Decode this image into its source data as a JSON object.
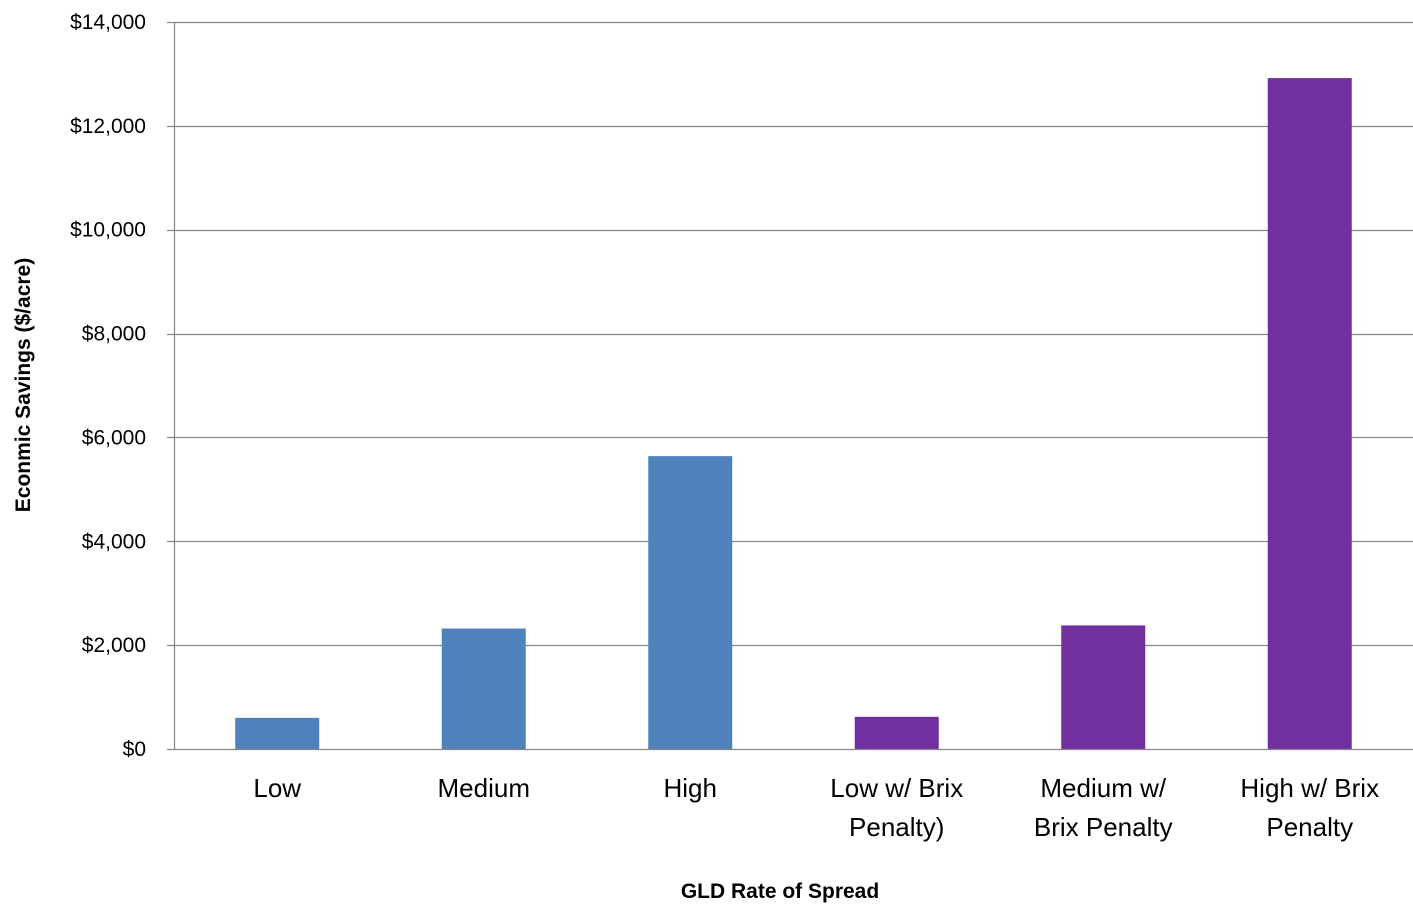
{
  "chart_data": {
    "type": "bar",
    "categories": [
      [
        "Low"
      ],
      [
        "Medium"
      ],
      [
        "High"
      ],
      [
        "Low w/ Brix",
        "Penalty)"
      ],
      [
        "Medium w/",
        "Brix Penalty"
      ],
      [
        "High w/ Brix",
        "Penalty"
      ]
    ],
    "values": [
      600,
      2320,
      5640,
      620,
      2380,
      12920
    ],
    "bar_colors": [
      "#4f81bd",
      "#4f81bd",
      "#4f81bd",
      "#7030a0",
      "#7030a0",
      "#7030a0"
    ],
    "xlabel": "GLD Rate of Spread",
    "ylabel": "Econmic Savings ($/acre)",
    "ylim": [
      0,
      14000
    ],
    "yticks": [
      0,
      2000,
      4000,
      6000,
      8000,
      10000,
      12000,
      14000
    ],
    "ytick_labels": [
      "$0",
      "$2,000",
      "$4,000",
      "$6,000",
      "$8,000",
      "$10,000",
      "$12,000",
      "$14,000"
    ],
    "grid": true,
    "gridline_color": "#868686",
    "legend": "none"
  }
}
